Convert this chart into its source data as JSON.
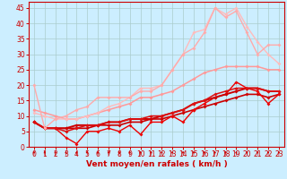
{
  "xlabel": "Vent moyen/en rafales ( km/h )",
  "background_color": "#cceeff",
  "grid_color": "#aacccc",
  "xlim": [
    -0.5,
    23.5
  ],
  "ylim": [
    0,
    47
  ],
  "yticks": [
    0,
    5,
    10,
    15,
    20,
    25,
    30,
    35,
    40,
    45
  ],
  "xticks": [
    0,
    1,
    2,
    3,
    4,
    5,
    6,
    7,
    8,
    9,
    10,
    11,
    12,
    13,
    14,
    15,
    16,
    17,
    18,
    19,
    20,
    21,
    22,
    23
  ],
  "lines": [
    {
      "x": [
        0,
        1,
        2,
        3,
        4,
        5,
        6,
        7,
        8,
        9,
        10,
        11,
        12,
        13,
        14,
        15,
        16,
        17,
        18,
        19,
        20,
        21,
        22,
        23
      ],
      "y": [
        8,
        6,
        6,
        6,
        6,
        6,
        7,
        7,
        7,
        8,
        8,
        9,
        9,
        10,
        11,
        12,
        13,
        14,
        15,
        16,
        17,
        17,
        16,
        17
      ],
      "color": "#cc0000",
      "lw": 1.2,
      "marker": "D",
      "ms": 2.0
    },
    {
      "x": [
        0,
        1,
        2,
        3,
        4,
        5,
        6,
        7,
        8,
        9,
        10,
        11,
        12,
        13,
        14,
        15,
        16,
        17,
        18,
        19,
        20,
        21,
        22,
        23
      ],
      "y": [
        8,
        6,
        6,
        3,
        1,
        5,
        5,
        6,
        5,
        7,
        4,
        8,
        8,
        10,
        8,
        12,
        14,
        16,
        17,
        21,
        19,
        18,
        14,
        17
      ],
      "color": "#ee0000",
      "lw": 1.0,
      "marker": "D",
      "ms": 2.0
    },
    {
      "x": [
        0,
        1,
        2,
        3,
        4,
        5,
        6,
        7,
        8,
        9,
        10,
        11,
        12,
        13,
        14,
        15,
        16,
        17,
        18,
        19,
        20,
        21,
        22,
        23
      ],
      "y": [
        8,
        6,
        6,
        6,
        7,
        7,
        7,
        8,
        8,
        9,
        9,
        9,
        10,
        11,
        12,
        14,
        15,
        16,
        17,
        18,
        19,
        19,
        18,
        18
      ],
      "color": "#cc0000",
      "lw": 1.4,
      "marker": "D",
      "ms": 2.0
    },
    {
      "x": [
        0,
        1,
        2,
        3,
        4,
        5,
        6,
        7,
        8,
        9,
        10,
        11,
        12,
        13,
        14,
        15,
        16,
        17,
        18,
        19,
        20,
        21,
        22,
        23
      ],
      "y": [
        8,
        6,
        6,
        5,
        6,
        7,
        7,
        8,
        8,
        9,
        9,
        10,
        10,
        11,
        12,
        14,
        15,
        17,
        18,
        19,
        19,
        19,
        18,
        18
      ],
      "color": "#dd1010",
      "lw": 1.1,
      "marker": "D",
      "ms": 2.0
    },
    {
      "x": [
        0,
        1,
        2,
        3,
        4,
        5,
        6,
        7,
        8,
        9,
        10,
        11,
        12,
        13,
        14,
        15,
        16,
        17,
        18,
        19,
        20,
        21,
        22,
        23
      ],
      "y": [
        12,
        11,
        10,
        9,
        9,
        10,
        11,
        12,
        13,
        14,
        16,
        16,
        17,
        18,
        20,
        22,
        24,
        25,
        26,
        26,
        26,
        26,
        25,
        25
      ],
      "color": "#ff9999",
      "lw": 1.1,
      "marker": "D",
      "ms": 2.0
    },
    {
      "x": [
        0,
        1,
        2,
        3,
        4,
        5,
        6,
        7,
        8,
        9,
        10,
        11,
        12,
        13,
        14,
        15,
        16,
        17,
        18,
        19,
        20,
        21,
        22,
        23
      ],
      "y": [
        11,
        10,
        9,
        9,
        9,
        10,
        11,
        13,
        14,
        16,
        19,
        19,
        20,
        25,
        30,
        37,
        38,
        45,
        43,
        45,
        39,
        34,
        30,
        27
      ],
      "color": "#ffbbbb",
      "lw": 1.0,
      "marker": "D",
      "ms": 2.0
    },
    {
      "x": [
        0,
        1,
        2,
        3,
        4,
        5,
        6,
        7,
        8,
        9,
        10,
        11,
        12,
        13,
        14,
        15,
        16,
        17,
        18,
        19,
        20,
        21,
        22,
        23
      ],
      "y": [
        20,
        6,
        9,
        10,
        12,
        13,
        16,
        16,
        16,
        16,
        18,
        18,
        20,
        25,
        30,
        32,
        37,
        45,
        42,
        44,
        37,
        30,
        33,
        33
      ],
      "color": "#ffaaaa",
      "lw": 1.0,
      "marker": "D",
      "ms": 2.0
    }
  ],
  "arrow_color": "#cc0000",
  "tick_fontsize": 5.5,
  "xlabel_fontsize": 6.5,
  "tick_color": "#cc0000",
  "spine_color": "#cc0000"
}
